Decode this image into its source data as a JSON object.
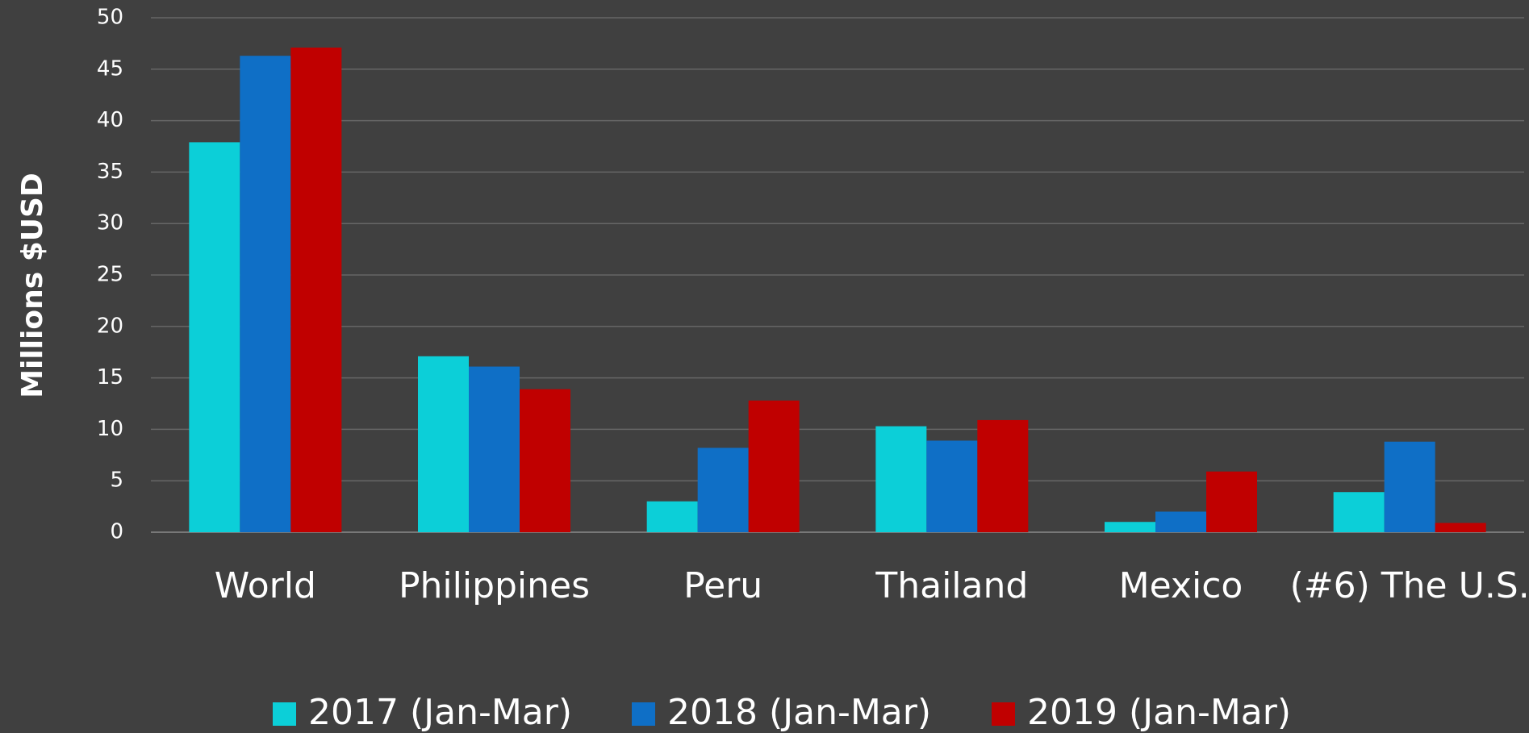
{
  "chart_data": {
    "type": "bar",
    "y_label": "Millions $USD",
    "categories": [
      "World",
      "Philippines",
      "Peru",
      "Thailand",
      "Mexico",
      "(#6) The U.S."
    ],
    "series": [
      {
        "name": "2017 (Jan-Mar)",
        "color": "#0ccfd8",
        "values": [
          37.9,
          17.1,
          3.0,
          10.3,
          1.0,
          3.9
        ]
      },
      {
        "name": "2018 (Jan-Mar)",
        "color": "#0f6fc6",
        "values": [
          46.3,
          16.1,
          8.2,
          8.9,
          2.0,
          8.8
        ]
      },
      {
        "name": "2019 (Jan-Mar)",
        "color": "#c00000",
        "values": [
          47.1,
          13.9,
          12.8,
          10.9,
          5.9,
          0.9
        ]
      }
    ],
    "ylim": [
      0,
      50
    ],
    "yticks": [
      0,
      5,
      10,
      15,
      20,
      25,
      30,
      35,
      40,
      45,
      50
    ],
    "grid": true,
    "legend": "bottom"
  }
}
